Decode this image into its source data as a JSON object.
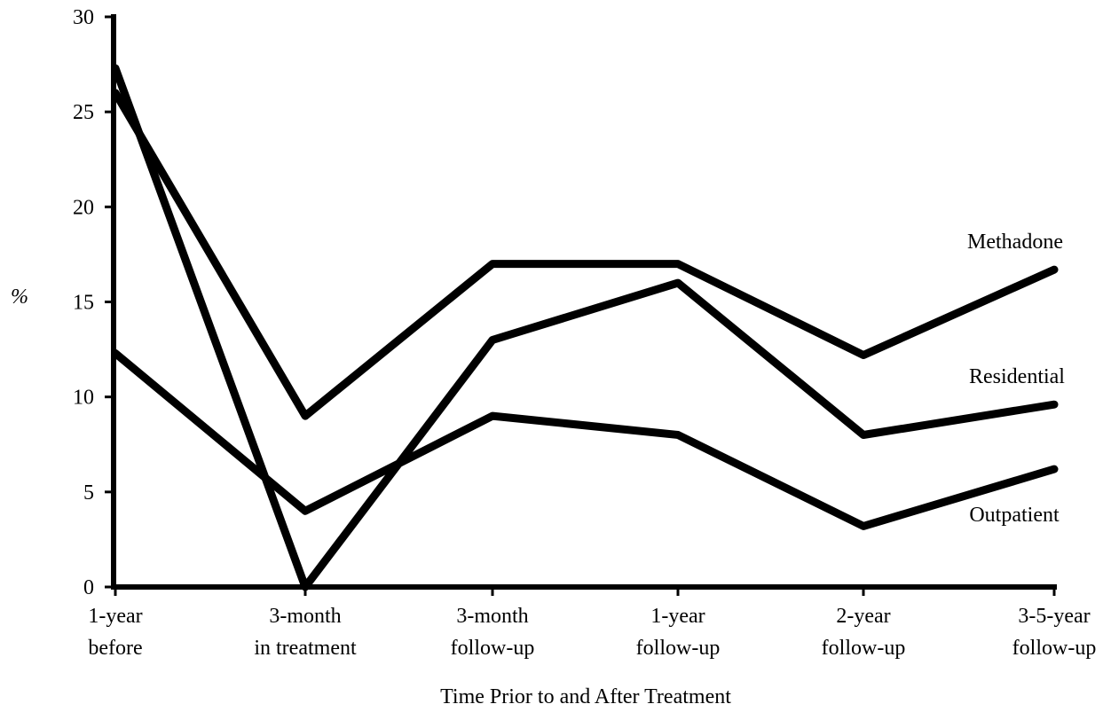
{
  "chart_data": {
    "type": "line",
    "title": "",
    "xlabel": "Time Prior to and After Treatment",
    "ylabel": "%",
    "ylim": [
      0,
      30
    ],
    "yticks": [
      0,
      5,
      10,
      15,
      20,
      25,
      30
    ],
    "grid": false,
    "legend": "direct labels at right end of lines",
    "categories": [
      [
        "1-year",
        "before"
      ],
      [
        "3-month",
        "in treatment"
      ],
      [
        "3-month",
        "follow-up"
      ],
      [
        "1-year",
        "follow-up"
      ],
      [
        "2-year",
        "follow-up"
      ],
      [
        "3-5-year",
        "follow-up"
      ]
    ],
    "series": [
      {
        "name": "Methadone",
        "values": [
          26,
          9,
          17,
          17,
          12.2,
          16.7
        ],
        "color": "#000000"
      },
      {
        "name": "Residential",
        "values": [
          27.3,
          0,
          13,
          16,
          8,
          9.6
        ],
        "color": "#000000"
      },
      {
        "name": "Outpatient",
        "values": [
          12.3,
          4,
          9,
          8,
          3.2,
          6.2
        ],
        "color": "#000000"
      }
    ]
  }
}
